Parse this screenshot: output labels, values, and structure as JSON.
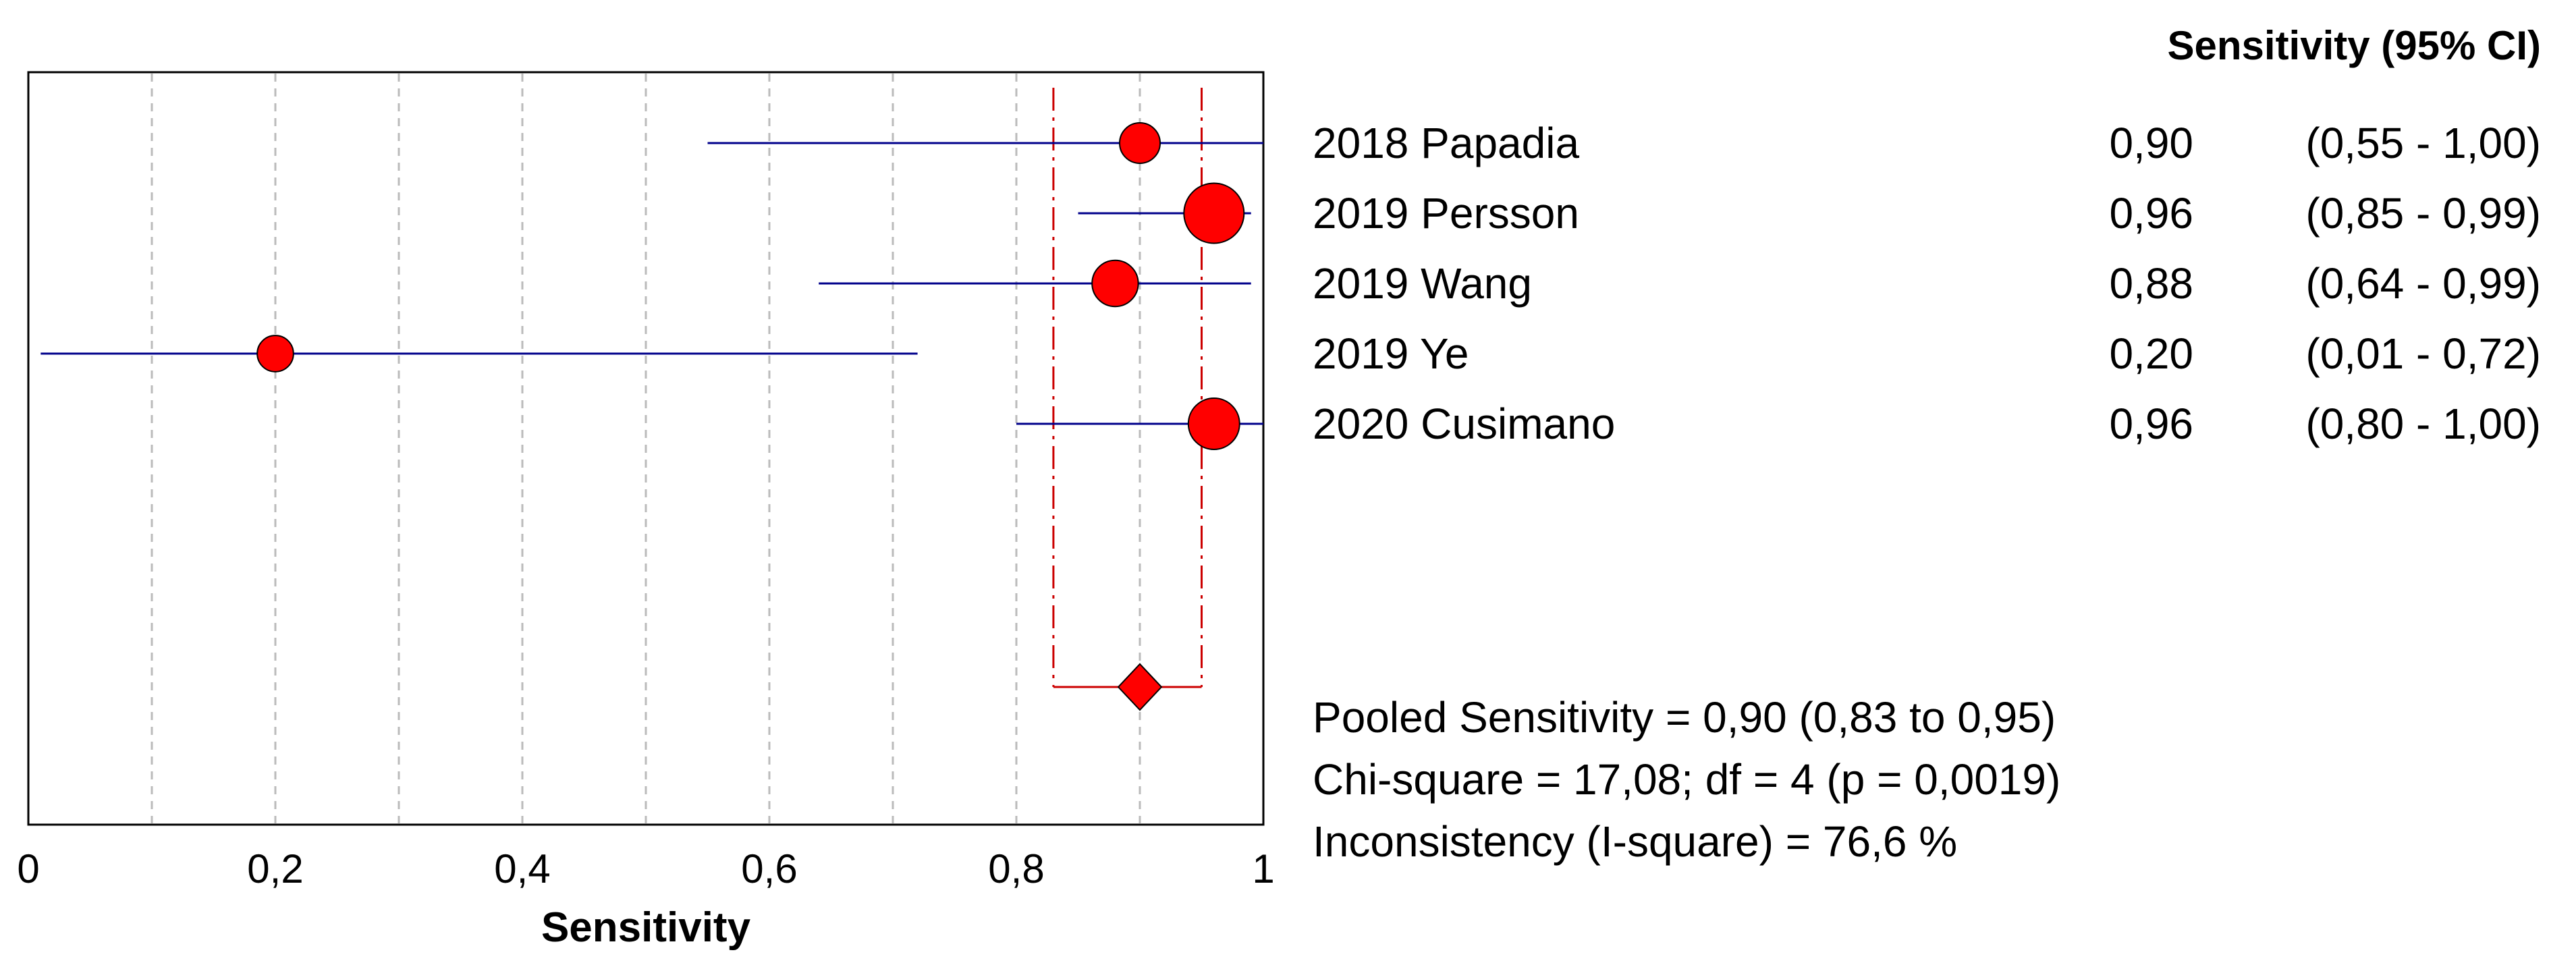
{
  "chart_data": {
    "type": "forest",
    "title": "",
    "xlabel": "Sensitivity",
    "xlim": [
      0,
      1
    ],
    "x_ticks": [
      {
        "value": 0,
        "label": "0"
      },
      {
        "value": 0.2,
        "label": "0,2"
      },
      {
        "value": 0.4,
        "label": "0,4"
      },
      {
        "value": 0.6,
        "label": "0,6"
      },
      {
        "value": 0.8,
        "label": "0,8"
      },
      {
        "value": 1,
        "label": "1"
      }
    ],
    "gridlines": [
      0.1,
      0.2,
      0.3,
      0.4,
      0.5,
      0.6,
      0.7,
      0.8,
      0.9
    ],
    "column_header": "Sensitivity (95% CI)",
    "studies": [
      {
        "label": "2018 Papadia",
        "estimate": 0.9,
        "lower": 0.55,
        "upper": 1.0,
        "estimate_text": "0,90",
        "ci_text": "(0,55 - 1,00)",
        "weight": 1.0
      },
      {
        "label": "2019 Persson",
        "estimate": 0.96,
        "lower": 0.85,
        "upper": 0.99,
        "estimate_text": "0,96",
        "ci_text": "(0,85 - 0,99)",
        "weight": 2.2
      },
      {
        "label": "2019 Wang",
        "estimate": 0.88,
        "lower": 0.64,
        "upper": 0.99,
        "estimate_text": "0,88",
        "ci_text": "(0,64 - 0,99)",
        "weight": 1.3
      },
      {
        "label": "2019 Ye",
        "estimate": 0.2,
        "lower": 0.01,
        "upper": 0.72,
        "estimate_text": "0,20",
        "ci_text": "(0,01 - 0,72)",
        "weight": 0.8
      },
      {
        "label": "2020 Cusimano",
        "estimate": 0.96,
        "lower": 0.8,
        "upper": 1.0,
        "estimate_text": "0,96",
        "ci_text": "(0,80 - 1,00)",
        "weight": 1.6
      }
    ],
    "pooled": {
      "estimate": 0.9,
      "lower": 0.83,
      "upper": 0.95
    },
    "summary_lines": [
      "Pooled Sensitivity = 0,90 (0,83 to 0,95)",
      "Chi-square = 17,08; df =  4 (p = 0,0019)",
      "Inconsistency (I-square) = 76,6 %"
    ],
    "colors": {
      "ci_line": "#00008b",
      "marker_fill": "#ff0000",
      "marker_stroke": "#000000",
      "pooled_line": "#cc0000",
      "grid": "#bbbbbb"
    }
  }
}
